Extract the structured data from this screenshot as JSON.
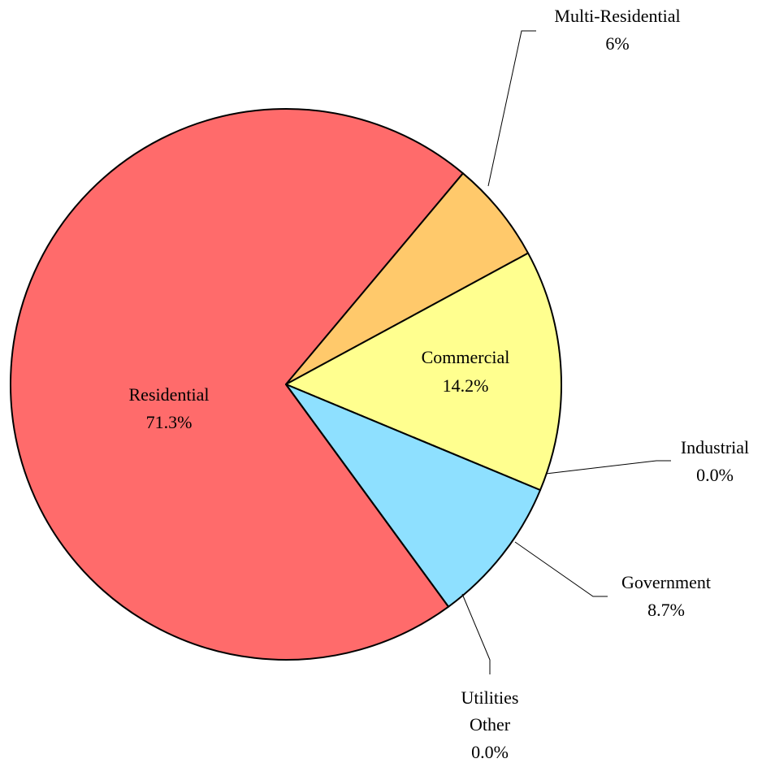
{
  "chart_data": {
    "type": "pie",
    "title": "",
    "slices": [
      {
        "label": "Residential",
        "value": 71.3,
        "value_label": "71.3%",
        "color": "#FF6B6B"
      },
      {
        "label": "Multi-Residential",
        "value": 6,
        "value_label": "6%",
        "color": "#FFC96B"
      },
      {
        "label": "Commercial",
        "value": 14.2,
        "value_label": "14.2%",
        "color": "#FFFF8F"
      },
      {
        "label": "Industrial",
        "value": 0.0,
        "value_label": "0.0%",
        "color": "#FFFF8F"
      },
      {
        "label": "Government",
        "value": 8.7,
        "value_label": "8.7%",
        "color": "#8EE0FF"
      },
      {
        "label": "Utilities Other",
        "label_lines": [
          "Utilities",
          "Other"
        ],
        "value": 0.0,
        "value_label": "0.0%",
        "color": "#8EE0FF"
      }
    ],
    "legend": "none",
    "outline_color": "#000000"
  }
}
